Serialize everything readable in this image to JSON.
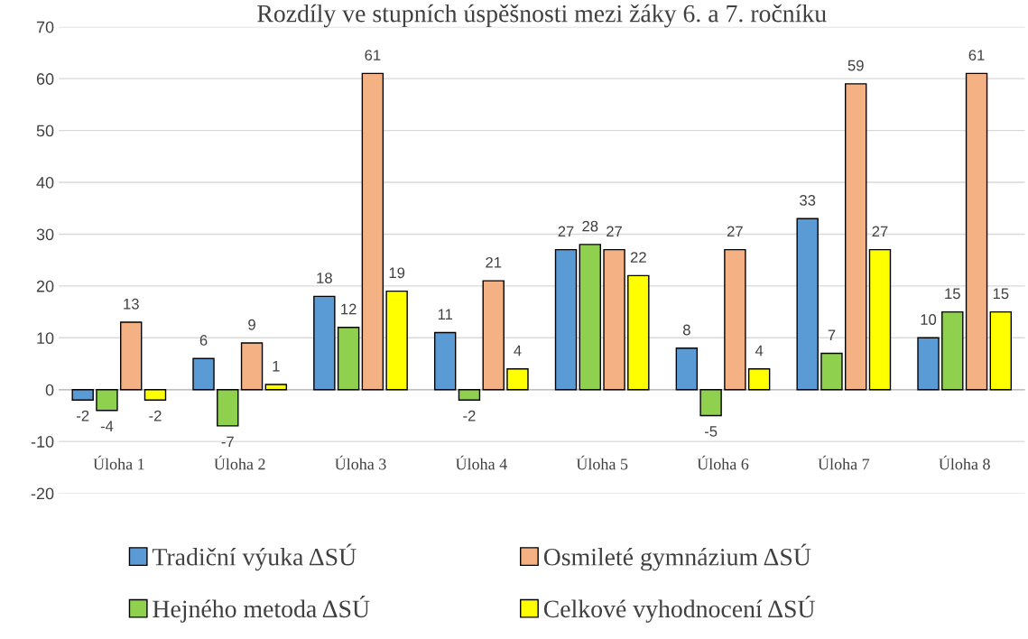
{
  "chart_data": {
    "type": "bar",
    "title": "Rozdíly ve stupních úspěšnosti mezi žáky 6. a 7. ročníku",
    "categories": [
      "Úloha 1",
      "Úloha 2",
      "Úloha 3",
      "Úloha 4",
      "Úloha 5",
      "Úloha 6",
      "Úloha 7",
      "Úloha 8"
    ],
    "series": [
      {
        "name": "Tradiční výuka ΔSÚ",
        "color": "#5b9bd5",
        "values": [
          -2,
          6,
          18,
          11,
          27,
          8,
          33,
          10
        ]
      },
      {
        "name": "Hejného metoda ΔSÚ",
        "color": "#8fd14f",
        "values": [
          -4,
          -7,
          12,
          -2,
          28,
          -5,
          7,
          15
        ]
      },
      {
        "name": "Osmileté gymnázium ΔSÚ",
        "color": "#f4b183",
        "values": [
          13,
          9,
          61,
          21,
          27,
          27,
          59,
          61
        ]
      },
      {
        "name": "Celkové vyhodnocení ΔSÚ",
        "color": "#ffff00",
        "values": [
          -2,
          1,
          19,
          4,
          22,
          4,
          27,
          15
        ]
      }
    ],
    "ylim": [
      -20,
      70
    ],
    "yticks": [
      -20,
      -10,
      0,
      10,
      20,
      30,
      40,
      50,
      60,
      70
    ],
    "grid": "y",
    "legend": "bottom",
    "data_labels": true
  }
}
